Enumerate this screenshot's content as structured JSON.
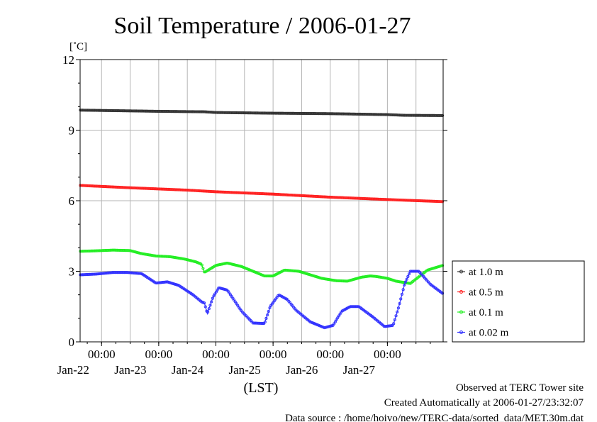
{
  "chart_data": {
    "type": "line",
    "title": "Soil Temperature / 2006-01-27",
    "ylabel": "[˚C]",
    "xlabel": "(LST)",
    "ylim": [
      0,
      12
    ],
    "yticks": [
      "0",
      "3",
      "6",
      "9",
      "12"
    ],
    "xlim": [
      21.625,
      27.975
    ],
    "xticks": [
      {
        "x": 22.0,
        "time": "00:00",
        "date": "Jan-22"
      },
      {
        "x": 23.0,
        "time": "00:00",
        "date": "Jan-23"
      },
      {
        "x": 24.0,
        "time": "00:00",
        "date": "Jan-24"
      },
      {
        "x": 25.0,
        "time": "00:00",
        "date": "Jan-25"
      },
      {
        "x": 26.0,
        "time": "00:00",
        "date": "Jan-26"
      },
      {
        "x": 27.0,
        "time": "00:00",
        "date": "Jan-27"
      }
    ],
    "grid": true,
    "legend_position": "right",
    "series": [
      {
        "name": "at 1.0 m",
        "color": "#333333",
        "x": [
          21.63,
          22.2,
          23.0,
          23.8,
          24.0,
          25.0,
          26.0,
          26.5,
          27.0,
          27.3,
          27.97
        ],
        "y": [
          9.85,
          9.83,
          9.8,
          9.78,
          9.75,
          9.72,
          9.7,
          9.68,
          9.66,
          9.63,
          9.62
        ]
      },
      {
        "name": "at 0.5 m",
        "color": "#ff2020",
        "x": [
          21.63,
          22.5,
          23.5,
          24.0,
          25.0,
          26.0,
          27.0,
          27.97
        ],
        "y": [
          6.65,
          6.55,
          6.45,
          6.38,
          6.28,
          6.15,
          6.05,
          5.96
        ]
      },
      {
        "name": "at 0.1 m",
        "color": "#22ee22",
        "x": [
          21.63,
          21.9,
          22.2,
          22.5,
          22.7,
          22.95,
          23.2,
          23.45,
          23.65,
          23.75,
          23.8,
          24.0,
          24.2,
          24.45,
          24.7,
          24.85,
          25.0,
          25.2,
          25.45,
          25.65,
          25.85,
          26.1,
          26.3,
          26.55,
          26.7,
          26.8,
          27.0,
          27.15,
          27.4,
          27.7,
          27.97
        ],
        "y": [
          3.85,
          3.87,
          3.9,
          3.88,
          3.75,
          3.65,
          3.62,
          3.52,
          3.4,
          3.3,
          2.95,
          3.25,
          3.35,
          3.2,
          2.95,
          2.8,
          2.8,
          3.05,
          3.0,
          2.85,
          2.7,
          2.6,
          2.58,
          2.75,
          2.8,
          2.78,
          2.7,
          2.58,
          2.48,
          3.05,
          3.25
        ]
      },
      {
        "name": "at 0.02 m",
        "color": "#3030ff",
        "x": [
          21.63,
          21.9,
          22.2,
          22.45,
          22.7,
          22.95,
          23.15,
          23.35,
          23.6,
          23.75,
          23.8,
          23.85,
          23.95,
          24.05,
          24.2,
          24.45,
          24.65,
          24.85,
          24.95,
          25.1,
          25.25,
          25.4,
          25.65,
          25.9,
          26.05,
          26.2,
          26.35,
          26.5,
          26.75,
          26.95,
          27.1,
          27.2,
          27.3,
          27.4,
          27.55,
          27.75,
          27.97
        ],
        "y": [
          2.85,
          2.88,
          2.95,
          2.95,
          2.9,
          2.5,
          2.55,
          2.4,
          2.0,
          1.7,
          1.65,
          1.2,
          1.9,
          2.3,
          2.2,
          1.3,
          0.8,
          0.78,
          1.5,
          2.0,
          1.8,
          1.35,
          0.85,
          0.6,
          0.7,
          1.3,
          1.5,
          1.5,
          1.05,
          0.65,
          0.7,
          1.5,
          2.45,
          3.0,
          3.0,
          2.45,
          2.05
        ]
      }
    ]
  },
  "footer": {
    "line1": "Observed at TERC Tower site",
    "line2": "Created Automatically at 2006-01-27/23:32:07",
    "line3": "Data source : /home/hoivo/new/TERC-data/sorted_data/MET.30m.dat"
  }
}
